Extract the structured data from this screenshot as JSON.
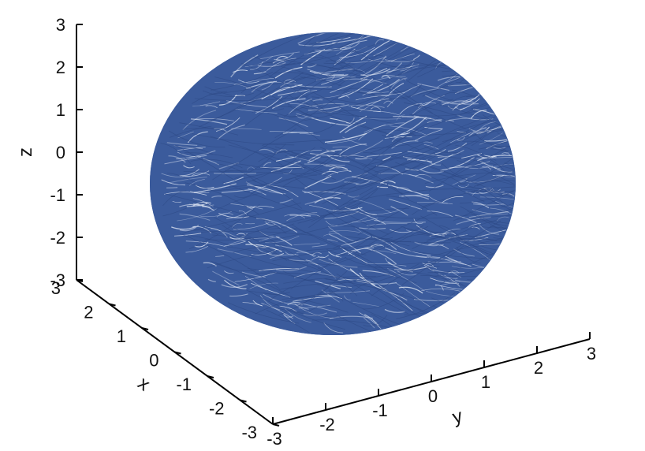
{
  "chart_data": {
    "type": "3d-line",
    "title": "",
    "axes": {
      "x": {
        "label": "x",
        "lim": [
          -3,
          3
        ],
        "ticks": [
          "-3",
          "-2",
          "-1",
          "0",
          "1",
          "2",
          "3"
        ]
      },
      "y": {
        "label": "y",
        "lim": [
          -3,
          3
        ],
        "ticks": [
          "-3",
          "-2",
          "-1",
          "0",
          "1",
          "2",
          "3"
        ]
      },
      "z": {
        "label": "z",
        "lim": [
          -3,
          3
        ],
        "ticks": [
          "-3",
          "-2",
          "-1",
          "0",
          "1",
          "2",
          "3"
        ]
      }
    },
    "series": [
      {
        "description_shape": "sphere",
        "center": [
          0,
          0,
          0
        ],
        "radius": 2.6,
        "line_color": "#3b5b9c"
      }
    ],
    "grid": false,
    "legend": "none"
  }
}
